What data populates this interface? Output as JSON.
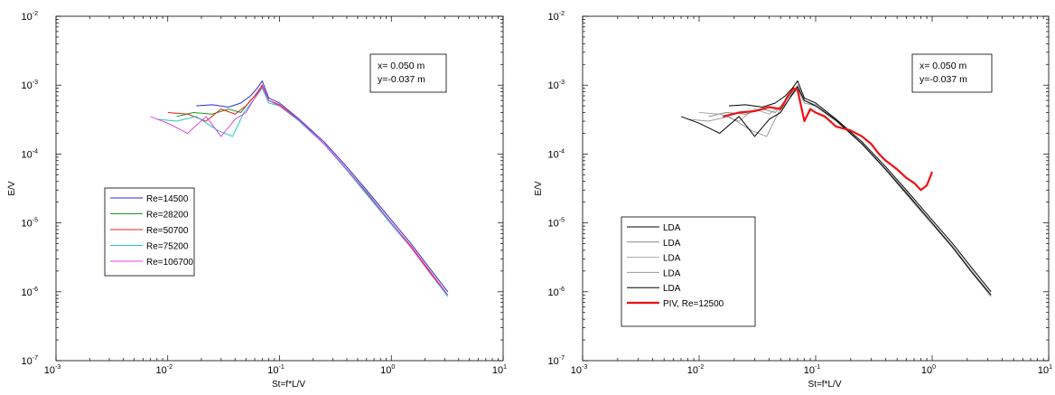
{
  "chart_data": [
    {
      "type": "line",
      "xlabel": "St=f*L/V",
      "ylabel": "E/V",
      "xscale": "log",
      "yscale": "log",
      "xlim": [
        0.001,
        10
      ],
      "ylim": [
        1e-07,
        0.01
      ],
      "xticks": [
        {
          "base": "10",
          "exp": "-3"
        },
        {
          "base": "10",
          "exp": "-2"
        },
        {
          "base": "10",
          "exp": "-1"
        },
        {
          "base": "10",
          "exp": "0"
        },
        {
          "base": "10",
          "exp": "1"
        }
      ],
      "yticks": [
        {
          "base": "10",
          "exp": "-7"
        },
        {
          "base": "10",
          "exp": "-6"
        },
        {
          "base": "10",
          "exp": "-5"
        },
        {
          "base": "10",
          "exp": "-4"
        },
        {
          "base": "10",
          "exp": "-3"
        },
        {
          "base": "10",
          "exp": "-2"
        }
      ],
      "legend_location": "middle-left",
      "annotation": [
        "x= 0.050 m",
        "y=-0.037 m"
      ],
      "grid": false,
      "series": [
        {
          "name": "Re=14500",
          "color": "#2b2bd6",
          "width": 1,
          "x": [
            0.018,
            0.025,
            0.035,
            0.045,
            0.055,
            0.063,
            0.07,
            0.08,
            0.1,
            0.15,
            0.25,
            0.4,
            0.6,
            1.0,
            1.5,
            2.2,
            3.2
          ],
          "y": [
            0.0005,
            0.00052,
            0.00048,
            0.00055,
            0.0007,
            0.0009,
            0.00115,
            0.00065,
            0.00055,
            0.00032,
            0.00015,
            6.5e-05,
            3e-05,
            1.1e-05,
            5e-06,
            2.2e-06,
            1e-06
          ]
        },
        {
          "name": "Re=28200",
          "color": "#1a9a1a",
          "width": 1,
          "x": [
            0.012,
            0.017,
            0.025,
            0.035,
            0.045,
            0.055,
            0.065,
            0.07,
            0.08,
            0.1,
            0.15,
            0.25,
            0.4,
            0.6,
            1.0,
            1.5,
            2.2,
            3.2
          ],
          "y": [
            0.00035,
            0.0004,
            0.00038,
            0.00045,
            0.0004,
            0.0006,
            0.0008,
            0.001,
            0.0006,
            0.0005,
            0.0003,
            0.00014,
            6e-05,
            2.8e-05,
            1e-05,
            4.5e-06,
            2e-06,
            9e-07
          ]
        },
        {
          "name": "Re=50700",
          "color": "#e32020",
          "width": 1,
          "x": [
            0.01,
            0.015,
            0.022,
            0.03,
            0.04,
            0.05,
            0.06,
            0.07,
            0.08,
            0.1,
            0.15,
            0.25,
            0.4,
            0.6,
            1.0,
            1.5,
            2.2,
            3.2
          ],
          "y": [
            0.0004,
            0.00038,
            0.0003,
            0.00045,
            0.00038,
            0.0005,
            0.0007,
            0.001,
            0.0006,
            0.00052,
            0.00031,
            0.00014,
            6e-05,
            2.7e-05,
            1e-05,
            4.6e-06,
            2e-06,
            9e-07
          ]
        },
        {
          "name": "Re=75200",
          "color": "#22c8c8",
          "width": 1,
          "x": [
            0.008,
            0.012,
            0.018,
            0.028,
            0.038,
            0.048,
            0.058,
            0.07,
            0.08,
            0.1,
            0.15,
            0.25,
            0.4,
            0.6,
            1.0,
            1.5,
            2.2,
            3.2
          ],
          "y": [
            0.00032,
            0.0003,
            0.00035,
            0.00022,
            0.00018,
            0.0004,
            0.0006,
            0.0009,
            0.00055,
            0.0005,
            0.0003,
            0.00014,
            5.8e-05,
            2.6e-05,
            9.5e-06,
            4.4e-06,
            1.9e-06,
            8.5e-07
          ]
        },
        {
          "name": "Re=106700",
          "color": "#e040e0",
          "width": 1,
          "x": [
            0.007,
            0.01,
            0.015,
            0.022,
            0.03,
            0.04,
            0.05,
            0.06,
            0.07,
            0.08,
            0.1,
            0.15,
            0.25,
            0.4,
            0.6,
            1.0,
            1.5,
            2.2,
            3.2
          ],
          "y": [
            0.00035,
            0.00028,
            0.0002,
            0.00035,
            0.00018,
            0.00032,
            0.0004,
            0.00065,
            0.00095,
            0.0006,
            0.0005,
            0.00031,
            0.00014,
            6e-05,
            2.7e-05,
            1e-05,
            4.4e-06,
            1.9e-06,
            9e-07
          ]
        }
      ]
    },
    {
      "type": "line",
      "xlabel": "St=f*L/V",
      "ylabel": "E/V",
      "xscale": "log",
      "yscale": "log",
      "xlim": [
        0.001,
        10
      ],
      "ylim": [
        1e-07,
        0.01
      ],
      "xticks": [
        {
          "base": "10",
          "exp": "-3"
        },
        {
          "base": "10",
          "exp": "-2"
        },
        {
          "base": "10",
          "exp": "-1"
        },
        {
          "base": "10",
          "exp": "0"
        },
        {
          "base": "10",
          "exp": "1"
        }
      ],
      "yticks": [
        {
          "base": "10",
          "exp": "-7"
        },
        {
          "base": "10",
          "exp": "-6"
        },
        {
          "base": "10",
          "exp": "-5"
        },
        {
          "base": "10",
          "exp": "-4"
        },
        {
          "base": "10",
          "exp": "-3"
        },
        {
          "base": "10",
          "exp": "-2"
        }
      ],
      "legend_location": "bottom-left",
      "annotation": [
        "x= 0.050 m",
        "y=-0.037 m"
      ],
      "grid": false,
      "series": [
        {
          "name": "LDA",
          "color": "#000000",
          "width": 1,
          "x": [
            0.018,
            0.025,
            0.035,
            0.045,
            0.055,
            0.063,
            0.07,
            0.08,
            0.1,
            0.15,
            0.25,
            0.4,
            0.6,
            1.0,
            1.5,
            2.2,
            3.2
          ],
          "y": [
            0.0005,
            0.00052,
            0.00048,
            0.00055,
            0.0007,
            0.0009,
            0.00115,
            0.00065,
            0.00055,
            0.00032,
            0.00015,
            6.5e-05,
            3e-05,
            1.1e-05,
            5e-06,
            2.2e-06,
            1e-06
          ]
        },
        {
          "name": "LDA",
          "color": "#8a8a8a",
          "width": 1,
          "x": [
            0.012,
            0.017,
            0.025,
            0.035,
            0.045,
            0.055,
            0.065,
            0.07,
            0.08,
            0.1,
            0.15,
            0.25,
            0.4,
            0.6,
            1.0,
            1.5,
            2.2,
            3.2
          ],
          "y": [
            0.00035,
            0.0004,
            0.00038,
            0.00045,
            0.0004,
            0.0006,
            0.0008,
            0.001,
            0.0006,
            0.0005,
            0.0003,
            0.00014,
            6e-05,
            2.8e-05,
            1e-05,
            4.5e-06,
            2e-06,
            9e-07
          ]
        },
        {
          "name": "LDA",
          "color": "#a8a8a8",
          "width": 1,
          "x": [
            0.01,
            0.015,
            0.022,
            0.03,
            0.04,
            0.05,
            0.06,
            0.07,
            0.08,
            0.1,
            0.15,
            0.25,
            0.4,
            0.6,
            1.0,
            1.5,
            2.2,
            3.2
          ],
          "y": [
            0.0004,
            0.00038,
            0.0003,
            0.00045,
            0.00038,
            0.0005,
            0.0007,
            0.001,
            0.0006,
            0.00052,
            0.00031,
            0.00014,
            6e-05,
            2.7e-05,
            1e-05,
            4.6e-06,
            2e-06,
            9e-07
          ]
        },
        {
          "name": "LDA",
          "color": "#9a9a9a",
          "width": 1,
          "x": [
            0.008,
            0.012,
            0.018,
            0.028,
            0.038,
            0.048,
            0.058,
            0.07,
            0.08,
            0.1,
            0.15,
            0.25,
            0.4,
            0.6,
            1.0,
            1.5,
            2.2,
            3.2
          ],
          "y": [
            0.00032,
            0.0003,
            0.00035,
            0.00022,
            0.00018,
            0.0004,
            0.0006,
            0.0009,
            0.00055,
            0.0005,
            0.0003,
            0.00014,
            5.8e-05,
            2.6e-05,
            9.5e-06,
            4.4e-06,
            1.9e-06,
            8.5e-07
          ]
        },
        {
          "name": "LDA",
          "color": "#000000",
          "width": 1,
          "x": [
            0.007,
            0.01,
            0.015,
            0.022,
            0.03,
            0.04,
            0.05,
            0.06,
            0.07,
            0.08,
            0.1,
            0.15,
            0.25,
            0.4,
            0.6,
            1.0,
            1.5,
            2.2,
            3.2
          ],
          "y": [
            0.00035,
            0.00028,
            0.0002,
            0.00035,
            0.00018,
            0.00032,
            0.0004,
            0.00065,
            0.00095,
            0.0006,
            0.0005,
            0.00031,
            0.00014,
            6e-05,
            2.7e-05,
            1e-05,
            4.4e-06,
            1.9e-06,
            9e-07
          ]
        },
        {
          "name": "PIV, Re=12500",
          "color": "#ee1111",
          "width": 2.2,
          "x": [
            0.016,
            0.022,
            0.03,
            0.04,
            0.05,
            0.058,
            0.065,
            0.07,
            0.08,
            0.09,
            0.1,
            0.12,
            0.15,
            0.2,
            0.25,
            0.3,
            0.35,
            0.4,
            0.5,
            0.6,
            0.7,
            0.8,
            0.9,
            1.0
          ],
          "y": [
            0.00035,
            0.0004,
            0.00042,
            0.00048,
            0.00045,
            0.0007,
            0.0009,
            0.00085,
            0.0003,
            0.00045,
            0.0004,
            0.00035,
            0.00025,
            0.00022,
            0.00018,
            0.00014,
            0.0001,
            8e-05,
            6e-05,
            4.5e-05,
            3.8e-05,
            3e-05,
            3.5e-05,
            5.5e-05
          ]
        }
      ]
    }
  ]
}
